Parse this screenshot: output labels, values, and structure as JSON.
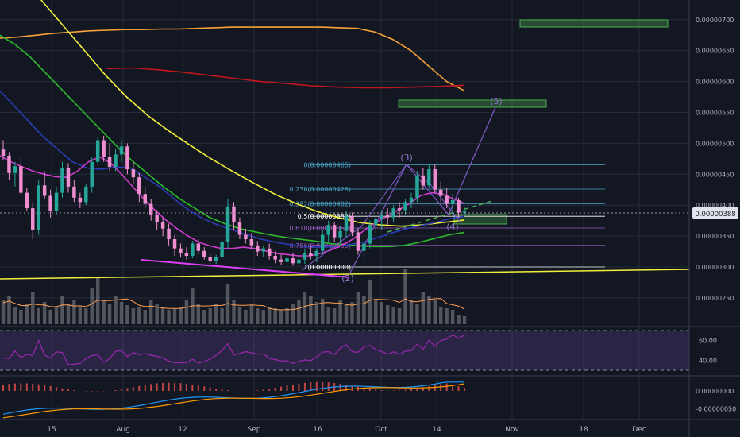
{
  "chart_data": {
    "type": "candlestick",
    "colors": {
      "background": "#131722",
      "grid": "#262b3a",
      "up": "#26a69a",
      "down": "#ef8fd0",
      "price_tag": "#ffffff",
      "fib_blue": "#4aa3c7",
      "fib_purple": "#9c5cc4"
    },
    "price_axis": {
      "ticks": [
        "0.00000700",
        "0.00000650",
        "0.00000600",
        "0.00000550",
        "0.00000500",
        "0.00000450",
        "0.00000400",
        "0.00000350",
        "0.00000300",
        "0.00000250"
      ],
      "tick_values": [
        700,
        650,
        600,
        550,
        500,
        450,
        400,
        350,
        300,
        250
      ],
      "current_price_label": "0.00000388",
      "current_price_value": 388,
      "unit_scale": "x 1e-8",
      "range": [
        226,
        746
      ]
    },
    "time_axis": {
      "ticks": [
        "15",
        "Aug",
        "12",
        "Sep",
        "16",
        "Oct",
        "14",
        "Nov",
        "18",
        "Dec"
      ]
    },
    "candles": [
      [
        490,
        505,
        472,
        480
      ],
      [
        480,
        486,
        440,
        452
      ],
      [
        452,
        470,
        430,
        463
      ],
      [
        463,
        478,
        415,
        420
      ],
      [
        420,
        428,
        390,
        395
      ],
      [
        395,
        405,
        345,
        360
      ],
      [
        360,
        440,
        352,
        432
      ],
      [
        432,
        455,
        410,
        415
      ],
      [
        415,
        425,
        380,
        390
      ],
      [
        390,
        430,
        385,
        420
      ],
      [
        420,
        470,
        412,
        460
      ],
      [
        460,
        468,
        420,
        430
      ],
      [
        430,
        440,
        405,
        412
      ],
      [
        412,
        420,
        395,
        405
      ],
      [
        405,
        435,
        400,
        430
      ],
      [
        430,
        478,
        420,
        470
      ],
      [
        470,
        510,
        465,
        505
      ],
      [
        505,
        512,
        470,
        478
      ],
      [
        478,
        500,
        455,
        462
      ],
      [
        462,
        490,
        455,
        482
      ],
      [
        482,
        505,
        470,
        495
      ],
      [
        495,
        500,
        450,
        458
      ],
      [
        458,
        470,
        435,
        445
      ],
      [
        445,
        452,
        405,
        418
      ],
      [
        418,
        430,
        395,
        402
      ],
      [
        402,
        410,
        375,
        385
      ],
      [
        385,
        392,
        360,
        372
      ],
      [
        372,
        380,
        350,
        362
      ],
      [
        362,
        370,
        335,
        345
      ],
      [
        345,
        352,
        318,
        330
      ],
      [
        330,
        338,
        315,
        322
      ],
      [
        322,
        332,
        312,
        318
      ],
      [
        318,
        342,
        314,
        338
      ],
      [
        338,
        345,
        320,
        326
      ],
      [
        326,
        332,
        312,
        316
      ],
      [
        316,
        322,
        305,
        310
      ],
      [
        310,
        320,
        305,
        316
      ],
      [
        316,
        345,
        312,
        340
      ],
      [
        340,
        410,
        330,
        398
      ],
      [
        398,
        405,
        360,
        372
      ],
      [
        372,
        380,
        345,
        352
      ],
      [
        352,
        362,
        338,
        345
      ],
      [
        345,
        355,
        328,
        335
      ],
      [
        335,
        342,
        318,
        325
      ],
      [
        325,
        335,
        316,
        330
      ],
      [
        330,
        338,
        312,
        318
      ],
      [
        318,
        325,
        306,
        312
      ],
      [
        312,
        320,
        303,
        308
      ],
      [
        308,
        318,
        300,
        314
      ],
      [
        314,
        322,
        302,
        306
      ],
      [
        306,
        318,
        300,
        312
      ],
      [
        312,
        330,
        305,
        322
      ],
      [
        322,
        335,
        312,
        318
      ],
      [
        318,
        330,
        308,
        326
      ],
      [
        326,
        360,
        320,
        352
      ],
      [
        352,
        375,
        340,
        368
      ],
      [
        368,
        372,
        340,
        348
      ],
      [
        348,
        365,
        338,
        358
      ],
      [
        358,
        390,
        348,
        382
      ],
      [
        382,
        388,
        350,
        356
      ],
      [
        356,
        362,
        320,
        326
      ],
      [
        326,
        345,
        310,
        338
      ],
      [
        338,
        375,
        330,
        368
      ],
      [
        368,
        385,
        355,
        378
      ],
      [
        378,
        392,
        360,
        385
      ],
      [
        385,
        395,
        368,
        380
      ],
      [
        380,
        400,
        372,
        395
      ],
      [
        395,
        405,
        380,
        392
      ],
      [
        392,
        410,
        385,
        405
      ],
      [
        405,
        420,
        395,
        412
      ],
      [
        412,
        455,
        405,
        448
      ],
      [
        448,
        460,
        425,
        432
      ],
      [
        432,
        466,
        428,
        458
      ],
      [
        458,
        466,
        420,
        425
      ],
      [
        425,
        438,
        405,
        415
      ],
      [
        415,
        428,
        395,
        402
      ],
      [
        402,
        418,
        385,
        408
      ],
      [
        408,
        412,
        380,
        388
      ],
      [
        388,
        398,
        382,
        390
      ]
    ],
    "moving_averages": [
      {
        "color": "#f7a238",
        "values": [
          670,
          672,
          675,
          678,
          680,
          682,
          683,
          684,
          684,
          685,
          685,
          686,
          687,
          688,
          688,
          688,
          688,
          688,
          688,
          687,
          686,
          680,
          668,
          650,
          625,
          600,
          585
        ]
      },
      {
        "color": "#c0171e",
        "values": [
          621,
          622,
          619,
          615,
          610,
          605,
          600,
          597,
          593,
          591,
          590,
          590,
          591,
          592,
          594
        ]
      },
      {
        "color": "#f3f03c",
        "values": [
          805,
          770,
          730,
          690,
          650,
          610,
          575,
          545,
          520,
          497,
          475,
          455,
          436,
          418,
          403,
          390,
          380,
          372,
          368,
          366,
          368,
          372,
          376
        ]
      },
      {
        "color": "#2dbb2d",
        "values": [
          675,
          660,
          640,
          615,
          590,
          565,
          540,
          515,
          490,
          468,
          448,
          428,
          410,
          395,
          380,
          370,
          362,
          357,
          352,
          348,
          345,
          342,
          338,
          336,
          334,
          333,
          333,
          335,
          340,
          346,
          352,
          356
        ]
      },
      {
        "color": "#2a3cb4",
        "values": [
          585,
          560,
          535,
          510,
          490,
          470,
          460,
          458,
          462,
          460,
          445,
          430,
          410,
          392,
          378,
          368,
          360,
          352,
          345,
          340,
          336,
          333,
          332,
          333,
          336,
          340,
          347,
          355,
          362,
          367,
          372,
          378,
          382
        ]
      },
      {
        "color": "#d03ccc",
        "values": [
          480,
          470,
          462,
          455,
          450,
          446,
          445,
          455,
          470,
          478,
          468,
          450,
          430,
          410,
          392,
          376,
          362,
          350,
          340,
          334,
          330,
          330,
          332,
          330,
          326,
          322,
          320,
          318,
          318,
          322,
          328,
          336,
          346,
          360,
          372,
          382,
          392,
          402,
          415,
          420,
          418,
          410,
          403
        ]
      }
    ],
    "volume": [
      30,
      35,
      22,
      18,
      25,
      40,
      20,
      28,
      18,
      22,
      35,
      25,
      30,
      22,
      20,
      45,
      60,
      30,
      25,
      35,
      28,
      24,
      20,
      22,
      18,
      30,
      25,
      20,
      18,
      20,
      22,
      30,
      45,
      25,
      18,
      20,
      25,
      20,
      50,
      30,
      22,
      18,
      24,
      20,
      18,
      22,
      20,
      18,
      20,
      25,
      30,
      40,
      35,
      28,
      32,
      22,
      20,
      30,
      26,
      28,
      40,
      35,
      55,
      30,
      28,
      24,
      22,
      20,
      70,
      30,
      25,
      40,
      35,
      30,
      22,
      20,
      18,
      12,
      10
    ],
    "fib_levels": [
      {
        "label": "0(0.00000465)",
        "value": 465,
        "color": "#4aa3c7"
      },
      {
        "label": "0.236(0.00000426)",
        "value": 426,
        "color": "#4aa3c7"
      },
      {
        "label": "0.382(0.00000402)",
        "value": 402,
        "color": "#4aa3c7"
      },
      {
        "label": "0.5(0.00000382)",
        "value": 382,
        "color": "#ffffff"
      },
      {
        "label": "0.618(0.00000363)",
        "value": 363,
        "color": "#9c5cc4"
      },
      {
        "label": "0.786(0.00000335)",
        "value": 335,
        "color": "#9c5cc4"
      },
      {
        "label": "1(0.00000300)",
        "value": 300,
        "color": "#ffffff"
      }
    ],
    "waves": [
      "(2)",
      "(3)",
      "(4)",
      "(5)"
    ],
    "rsi": {
      "ticks": [
        "60.00",
        "40.00"
      ],
      "tick_values": [
        60,
        40
      ]
    },
    "macd": {
      "ticks": [
        "0.00000000",
        "-0.00000050"
      ],
      "tick_values": [
        0,
        -50
      ]
    }
  }
}
